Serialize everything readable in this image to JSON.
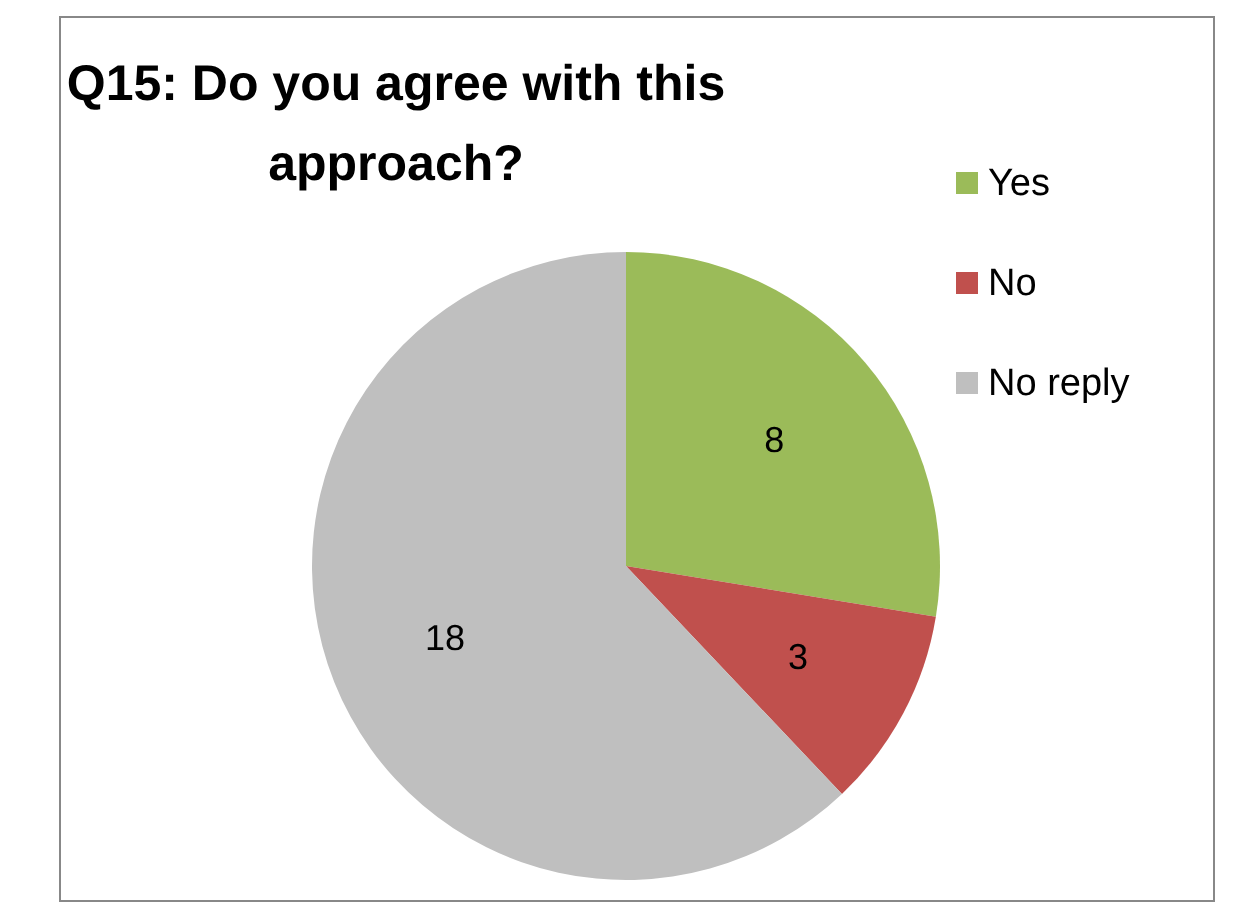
{
  "chart_data": {
    "type": "pie",
    "title": "Q15: Do you agree with this approach?",
    "categories": [
      "Yes",
      "No",
      "No reply"
    ],
    "values": [
      8,
      3,
      18
    ],
    "colors": [
      "#9bbb59",
      "#c0504d",
      "#bfbfbf"
    ],
    "data_labels": true,
    "legend": "right"
  }
}
